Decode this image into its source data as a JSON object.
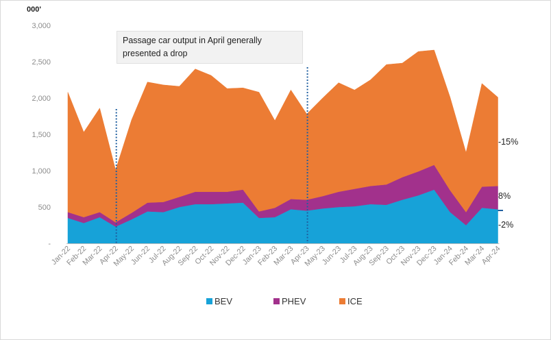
{
  "chart_data": {
    "type": "area",
    "stacked": true,
    "unit_label": "000'",
    "y_ticks": [
      "3,000",
      "2,500",
      "2,000",
      "1,500",
      "1,000",
      "500",
      "-"
    ],
    "ylim": [
      0,
      3000
    ],
    "categories": [
      "Jan-22",
      "Feb-22",
      "Mar-22",
      "Apr-22",
      "May-22",
      "Jun-22",
      "Jul-22",
      "Aug-22",
      "Sep-22",
      "Oct-22",
      "Nov-22",
      "Dec-22",
      "Jan-23",
      "Feb-23",
      "Mar-23",
      "Apr-23",
      "May-23",
      "Jun-23",
      "Jul-23",
      "Aug-23",
      "Sep-23",
      "Oct-23",
      "Nov-23",
      "Dec-23",
      "Jan-24",
      "Feb-24",
      "Mar-24",
      "Apr-24"
    ],
    "series": [
      {
        "name": "BEV",
        "color": "#17a2d8",
        "values": [
          350,
          280,
          360,
          230,
          330,
          440,
          430,
          500,
          540,
          540,
          550,
          560,
          350,
          360,
          470,
          450,
          480,
          500,
          510,
          540,
          530,
          600,
          660,
          740,
          430,
          250,
          490,
          470
        ]
      },
      {
        "name": "PHEV",
        "color": "#a2318c",
        "values": [
          80,
          80,
          70,
          60,
          90,
          120,
          140,
          140,
          170,
          170,
          160,
          180,
          90,
          130,
          140,
          150,
          170,
          210,
          240,
          250,
          280,
          310,
          330,
          340,
          300,
          180,
          290,
          320
        ]
      },
      {
        "name": "ICE",
        "color": "#ec7c34",
        "values": [
          1650,
          1170,
          1430,
          720,
          1280,
          1660,
          1610,
          1520,
          1690,
          1600,
          1420,
          1400,
          1640,
          1200,
          1500,
          1180,
          1350,
          1500,
          1360,
          1460,
          1650,
          1570,
          1650,
          1580,
          1280,
          820,
          1420,
          1220
        ]
      }
    ],
    "annotations": {
      "callout": "Passage car output in April generally presented a drop",
      "ice_change": "-15%",
      "phev_change": "8%",
      "bev_change": "-2%"
    },
    "legend_position": "bottom",
    "grid": false
  }
}
